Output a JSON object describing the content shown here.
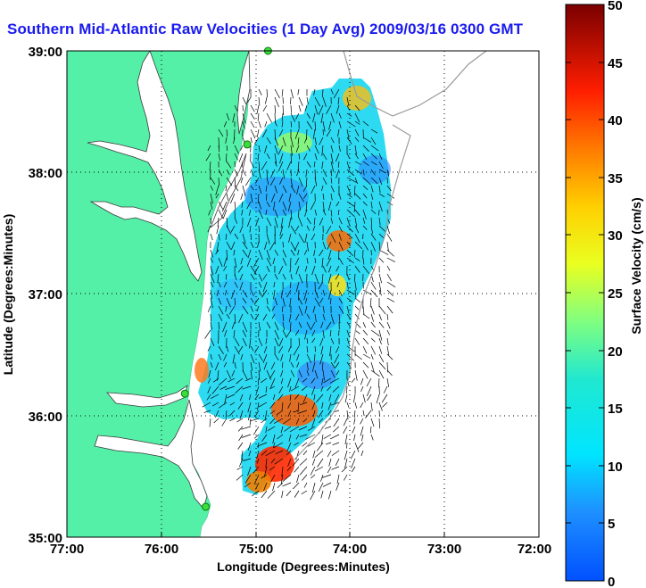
{
  "title": "Southern Mid-Atlantic Raw Velocities (1 Day Avg) 2009/03/16 0300 GMT",
  "map": {
    "x_axis": {
      "label": "Longitude (Degrees:Minutes)",
      "ticks": [
        "77:00",
        "76:00",
        "75:00",
        "74:00",
        "73:00",
        "72:00"
      ]
    },
    "y_axis": {
      "label": "Latitude (Degrees:Minutes)",
      "ticks": [
        "39:00",
        "38:00",
        "37:00",
        "36:00",
        "35:00"
      ]
    },
    "lon_range": [
      -77,
      -72
    ],
    "lat_range": [
      35,
      39
    ],
    "grid": "dotted",
    "land_color": "#55f0a8",
    "coast_contour_color": "#9a9a9a"
  },
  "colorbar": {
    "label": "Surface Velocity (cm/s)",
    "ticks": [
      "0",
      "5",
      "10",
      "15",
      "20",
      "25",
      "30",
      "35",
      "40",
      "45",
      "50"
    ],
    "range": [
      0,
      50
    ],
    "colormap": "jet"
  },
  "stations": [
    {
      "lon": -74.87,
      "lat": 39.0
    },
    {
      "lon": -75.09,
      "lat": 38.23
    },
    {
      "lon": -75.75,
      "lat": 36.18
    },
    {
      "lon": -75.53,
      "lat": 35.25
    }
  ]
}
